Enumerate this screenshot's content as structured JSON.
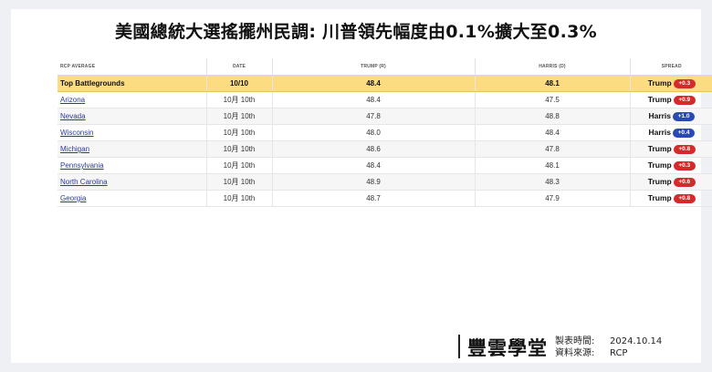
{
  "title": "美國總統大選搖擺州民調: 川普領先幅度由0.1%擴大至0.3%",
  "colors": {
    "trump": "#d42a2a",
    "harris": "#2a49b8",
    "highlight": "#fcdc80"
  },
  "chart_data": {
    "type": "table",
    "columns": [
      "RCP AVERAGE",
      "DATE",
      "TRUMP (R)",
      "HARRIS (D)",
      "SPREAD"
    ],
    "rows": [
      {
        "name": "Top Battlegrounds",
        "date": "10/10",
        "trump": "48.4",
        "harris": "48.1",
        "leader": "Trump",
        "margin": "+0.3",
        "party": "trump"
      },
      {
        "name": "Arizona",
        "date": "10月 10th",
        "trump": "48.4",
        "harris": "47.5",
        "leader": "Trump",
        "margin": "+0.9",
        "party": "trump"
      },
      {
        "name": "Nevada",
        "date": "10月 10th",
        "trump": "47.8",
        "harris": "48.8",
        "leader": "Harris",
        "margin": "+1.0",
        "party": "harris"
      },
      {
        "name": "Wisconsin",
        "date": "10月 10th",
        "trump": "48.0",
        "harris": "48.4",
        "leader": "Harris",
        "margin": "+0.4",
        "party": "harris"
      },
      {
        "name": "Michigan",
        "date": "10月 10th",
        "trump": "48.6",
        "harris": "47.8",
        "leader": "Trump",
        "margin": "+0.8",
        "party": "trump"
      },
      {
        "name": "Pennsylvania",
        "date": "10月 10th",
        "trump": "48.4",
        "harris": "48.1",
        "leader": "Trump",
        "margin": "+0.3",
        "party": "trump"
      },
      {
        "name": "North Carolina",
        "date": "10月 10th",
        "trump": "48.9",
        "harris": "48.3",
        "leader": "Trump",
        "margin": "+0.6",
        "party": "trump"
      },
      {
        "name": "Georgia",
        "date": "10月 10th",
        "trump": "48.7",
        "harris": "47.9",
        "leader": "Trump",
        "margin": "+0.8",
        "party": "trump"
      }
    ]
  },
  "footer": {
    "logo": "豐雲學堂",
    "made_label": "製表時間:",
    "made_value": "2024.10.14",
    "source_label": "資料來源:",
    "source_value": "RCP"
  }
}
